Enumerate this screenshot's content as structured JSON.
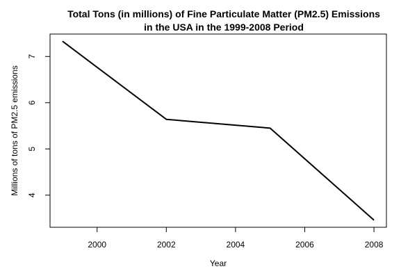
{
  "chart_data": {
    "type": "line",
    "title": {
      "line1": "Total Tons (in millions) of Fine Particulate Matter (PM2.5) Emissions",
      "line2": "in the USA in the 1999-2008 Period"
    },
    "xlabel": "Year",
    "ylabel": "Millions of tons of PM2.5 emissions",
    "x": [
      1999,
      2002,
      2005,
      2008
    ],
    "y": [
      7.33,
      5.64,
      5.45,
      3.46
    ],
    "xticks": [
      2000,
      2002,
      2004,
      2006,
      2008
    ],
    "yticks": [
      4,
      5,
      6,
      7
    ],
    "xlim": [
      1998.64,
      2008.36
    ],
    "ylim": [
      3.305,
      7.485
    ],
    "line_color": "#000000",
    "grid": false,
    "legend": "none"
  }
}
